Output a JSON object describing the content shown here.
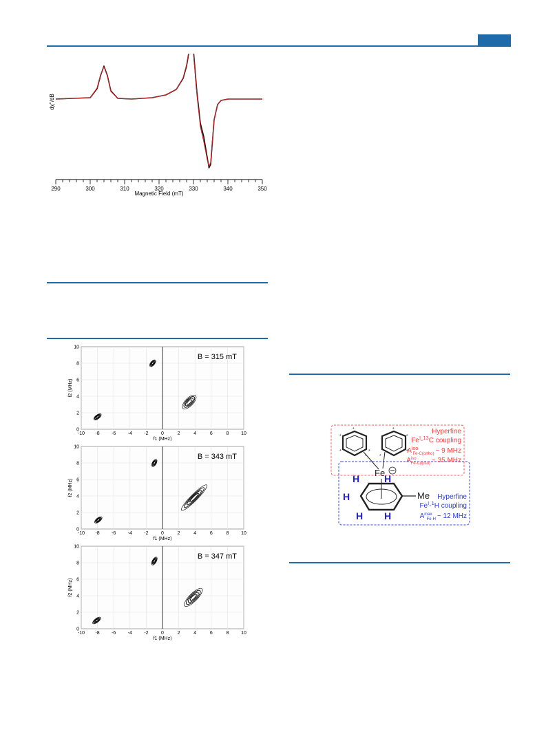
{
  "charts": {
    "epr": {
      "ylabel": "dχ''/dB",
      "xlabel": "Magnetic Field (mT)",
      "xticks": [
        "290",
        "300",
        "310",
        "320",
        "330",
        "340",
        "350"
      ]
    },
    "hyscore": {
      "xlabel": "f1 (MHz)",
      "ylabel": "f2 (MHz)",
      "xticks": [
        "-10",
        "-8",
        "-6",
        "-4",
        "-2",
        "0",
        "2",
        "4",
        "6",
        "8",
        "10"
      ],
      "yticks": [
        "0",
        "2",
        "4",
        "6",
        "8",
        "10"
      ],
      "panels": [
        {
          "field": "B = 315 mT"
        },
        {
          "field": "B = 343 mT"
        },
        {
          "field": "B = 347 mT"
        }
      ]
    }
  },
  "chart_data": [
    {
      "type": "line",
      "xlabel": "Magnetic Field (mT)",
      "ylabel": "dχ''/dB",
      "xlim": [
        290,
        350
      ],
      "ylim": [
        -1,
        1
      ],
      "series": [
        {
          "color": "#111111",
          "x": [
            290,
            300,
            302,
            303,
            304,
            305,
            306,
            308,
            312,
            318,
            322,
            325,
            327,
            328,
            329,
            329.5,
            330,
            331,
            332,
            333,
            334,
            334.5,
            335,
            335.5,
            336,
            337,
            338,
            340,
            345,
            350
          ],
          "y": [
            0,
            0.02,
            0.15,
            0.34,
            0.48,
            0.34,
            0.12,
            0.01,
            0,
            0.02,
            0.06,
            0.14,
            0.3,
            0.48,
            0.78,
            0.92,
            0.7,
            0.1,
            -0.35,
            -0.55,
            -0.85,
            -1.0,
            -0.95,
            -0.62,
            -0.3,
            -0.08,
            -0.02,
            0,
            0,
            0
          ]
        },
        {
          "color": "#cc2222",
          "x": [
            290,
            300,
            302,
            303,
            304,
            305,
            306,
            308,
            312,
            318,
            322,
            325,
            327,
            328,
            329,
            329.5,
            330,
            331,
            332,
            333,
            334,
            334.5,
            335,
            335.5,
            336,
            337,
            338,
            340,
            345,
            350
          ],
          "y": [
            0,
            0.02,
            0.16,
            0.35,
            0.47,
            0.33,
            0.11,
            0.01,
            0,
            0.02,
            0.06,
            0.14,
            0.31,
            0.5,
            0.8,
            0.9,
            0.66,
            0.06,
            -0.4,
            -0.62,
            -0.88,
            -0.98,
            -0.92,
            -0.6,
            -0.3,
            -0.08,
            -0.02,
            0,
            0,
            0
          ]
        }
      ]
    },
    {
      "type": "scatter",
      "title": "B = 315 mT",
      "xlabel": "f1 (MHz)",
      "ylabel": "f2 (MHz)",
      "xlim": [
        -10,
        10
      ],
      "ylim": [
        0,
        10
      ],
      "features": [
        {
          "x": -8.0,
          "y": 1.5,
          "angle": -38,
          "rx": 0.55,
          "ry": 0.15
        },
        {
          "x": -1.2,
          "y": 8.0,
          "angle": -50,
          "rx": 0.5,
          "ry": 0.15
        },
        {
          "x": 3.3,
          "y": 3.3,
          "angle": -45,
          "rx": 1.1,
          "ry": 0.3
        }
      ]
    },
    {
      "type": "scatter",
      "title": "B = 343 mT",
      "xlabel": "f1 (MHz)",
      "ylabel": "f2 (MHz)",
      "xlim": [
        -10,
        10
      ],
      "ylim": [
        0,
        10
      ],
      "features": [
        {
          "x": -7.9,
          "y": 1.1,
          "angle": -38,
          "rx": 0.55,
          "ry": 0.15
        },
        {
          "x": -1.0,
          "y": 8.0,
          "angle": -60,
          "rx": 0.5,
          "ry": 0.15
        },
        {
          "x": 3.9,
          "y": 3.8,
          "angle": -45,
          "rx": 2.2,
          "ry": 0.25
        }
      ]
    },
    {
      "type": "scatter",
      "title": "B = 347 mT",
      "xlabel": "f1 (MHz)",
      "ylabel": "f2 (MHz)",
      "xlim": [
        -10,
        10
      ],
      "ylim": [
        0,
        10
      ],
      "features": [
        {
          "x": -8.1,
          "y": 1.0,
          "angle": -38,
          "rx": 0.6,
          "ry": 0.15
        },
        {
          "x": -1.0,
          "y": 8.2,
          "angle": -60,
          "rx": 0.55,
          "ry": 0.15
        },
        {
          "x": 3.8,
          "y": 3.8,
          "angle": -45,
          "rx": 1.5,
          "ry": 0.3
        }
      ]
    }
  ],
  "diagram": {
    "hf_red": {
      "title": "Hyperfine",
      "coupling": [
        "Fe",
        "I",
        "-",
        "13",
        "C coupling"
      ],
      "line1": {
        "label": "A",
        "sup": "iso",
        "sub": "Fe-C(ortho)",
        "value": "~ 9 MHz"
      },
      "line2": {
        "label": "A",
        "sup": "iso",
        "sub": "Fe-C(ipso)",
        "value": "~ 35 MHz"
      }
    },
    "hf_blue": {
      "title": "Hyperfine",
      "coupling": [
        "Fe",
        "I",
        "-",
        "1",
        "H coupling"
      ],
      "line1": {
        "label": "A",
        "sup": "max",
        "sub": "Fe-H",
        "value": "~ 12 MHz"
      }
    },
    "atoms": {
      "fe": "Fe",
      "me": "Me",
      "h": "H"
    },
    "colors": {
      "red": "#ff3b3b",
      "blue": "#2b3bd8",
      "accent": "#1f6aa8"
    }
  }
}
